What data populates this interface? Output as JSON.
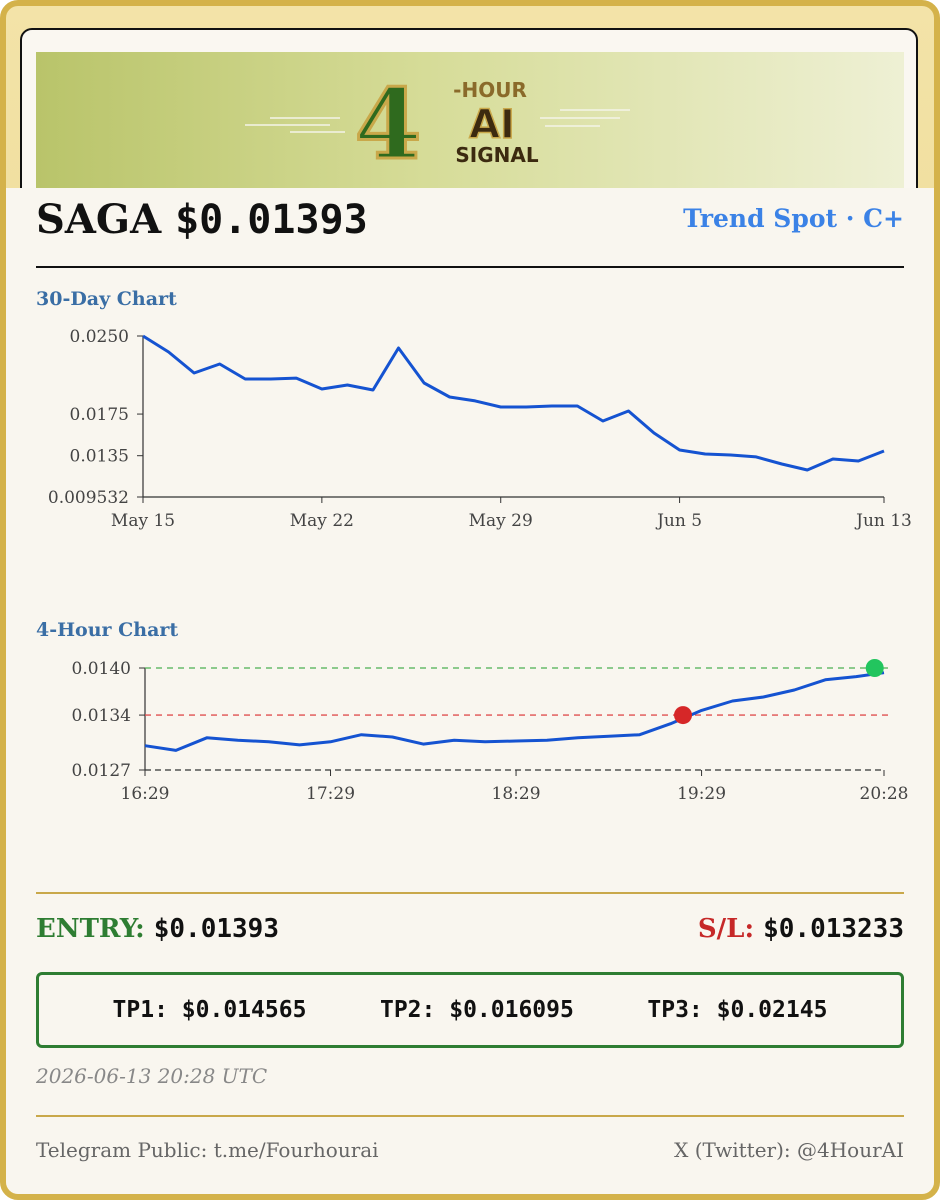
{
  "banner": {
    "logo_digit": "4",
    "logo_line1": "-HOUR",
    "logo_line2": "AI",
    "logo_line3": "SIGNAL"
  },
  "header": {
    "ticker": "SAGA",
    "price": "$0.01393",
    "strategy": "Trend Spot · C+"
  },
  "chart_data": [
    {
      "type": "line",
      "title": "30-Day Chart",
      "x": [
        "May 15",
        "May 16",
        "May 17",
        "May 18",
        "May 19",
        "May 20",
        "May 21",
        "May 22",
        "May 23",
        "May 24",
        "May 25",
        "May 26",
        "May 27",
        "May 28",
        "May 29",
        "May 30",
        "May 31",
        "Jun 1",
        "Jun 2",
        "Jun 3",
        "Jun 4",
        "Jun 5",
        "Jun 6",
        "Jun 7",
        "Jun 8",
        "Jun 9",
        "Jun 10",
        "Jun 11",
        "Jun 12",
        "Jun 13"
      ],
      "series": [
        {
          "color": "#1553d1",
          "values": [
            0.025,
            0.02346,
            0.02145,
            0.02231,
            0.02087,
            0.02087,
            0.02096,
            0.01991,
            0.02029,
            0.01981,
            0.02385,
            0.02048,
            0.01914,
            0.01876,
            0.01818,
            0.01818,
            0.01827,
            0.01827,
            0.01683,
            0.01779,
            0.01568,
            0.01405,
            0.01366,
            0.01357,
            0.01338,
            0.0127,
            0.01213,
            0.01318,
            0.01299,
            0.01395
          ]
        }
      ],
      "xlim": [
        "May 15",
        "Jun 13"
      ],
      "xticks": [
        "May 15",
        "May 22",
        "May 29",
        "Jun 5",
        "Jun 13"
      ],
      "ylim": [
        0.009532,
        0.025
      ],
      "yticks": [
        {
          "value": 0.025,
          "label": "0.0250"
        },
        0.0175,
        0.0135,
        0.009532
      ]
    },
    {
      "type": "line",
      "title": "4-Hour Chart",
      "x": [
        "16:29",
        "16:39",
        "16:49",
        "16:59",
        "17:09",
        "17:19",
        "17:29",
        "17:39",
        "17:49",
        "17:59",
        "18:09",
        "18:19",
        "18:29",
        "18:39",
        "18:49",
        "18:59",
        "19:09",
        "19:19",
        "19:29",
        "19:39",
        "19:49",
        "19:59",
        "20:09",
        "20:19",
        "20:28"
      ],
      "series": [
        {
          "color": "#1553d1",
          "values": [
            0.01301,
            0.01295,
            0.01311,
            0.01308,
            0.01306,
            0.01302,
            0.01306,
            0.01315,
            0.01312,
            0.01303,
            0.01308,
            0.01306,
            0.01307,
            0.01308,
            0.01311,
            0.01313,
            0.01315,
            0.01329,
            0.01346,
            0.01358,
            0.01363,
            0.01372,
            0.01385,
            0.01389,
            0.01394
          ]
        }
      ],
      "xlim": [
        "16:29",
        "20:28"
      ],
      "xticks": [
        "16:29",
        "17:29",
        "18:29",
        "19:29",
        "20:28"
      ],
      "ylim": [
        0.0127,
        0.014
      ],
      "yticks": [
        {
          "value": 0.014,
          "label": "0.0140"
        },
        0.0134,
        0.0127
      ],
      "reference_lines": [
        {
          "value": 0.014,
          "color": "#4caf50"
        },
        {
          "value": 0.0134,
          "color": "#e05050"
        }
      ],
      "markers": [
        {
          "x": "19:23",
          "value": 0.0134,
          "color": "#d62728"
        },
        {
          "x": "20:25",
          "value": 0.014,
          "color": "#22c55e"
        }
      ]
    }
  ],
  "levels": {
    "entry_label": "ENTRY:",
    "entry": "$0.01393",
    "sl_label": "S/L:",
    "sl": "$0.013233"
  },
  "targets": [
    {
      "label": "TP1:",
      "value": "$0.014565"
    },
    {
      "label": "TP2:",
      "value": "$0.016095"
    },
    {
      "label": "TP3:",
      "value": "$0.02145"
    }
  ],
  "timestamp": "2026-06-13 20:28 UTC",
  "footer": {
    "telegram": "Telegram Public: t.me/Fourhourai",
    "twitter": "X (Twitter): @4HourAI"
  }
}
